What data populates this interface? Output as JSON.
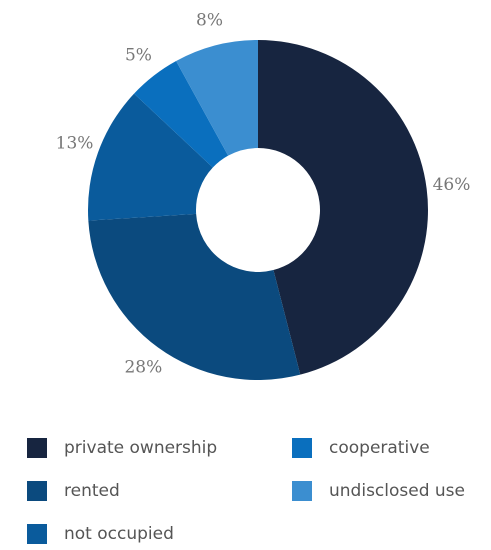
{
  "chart_data": {
    "type": "donut",
    "categories": [
      "private ownership",
      "rented",
      "not occupied",
      "cooperative",
      "undisclosed use"
    ],
    "values": [
      46,
      28,
      13,
      5,
      8
    ],
    "value_labels": [
      "46%",
      "28%",
      "13%",
      "5%",
      "8%"
    ],
    "colors": [
      "#172540",
      "#0b4a7e",
      "#0a5b9c",
      "#0a6fbe",
      "#3b8ed0"
    ],
    "legend": "bottom"
  }
}
